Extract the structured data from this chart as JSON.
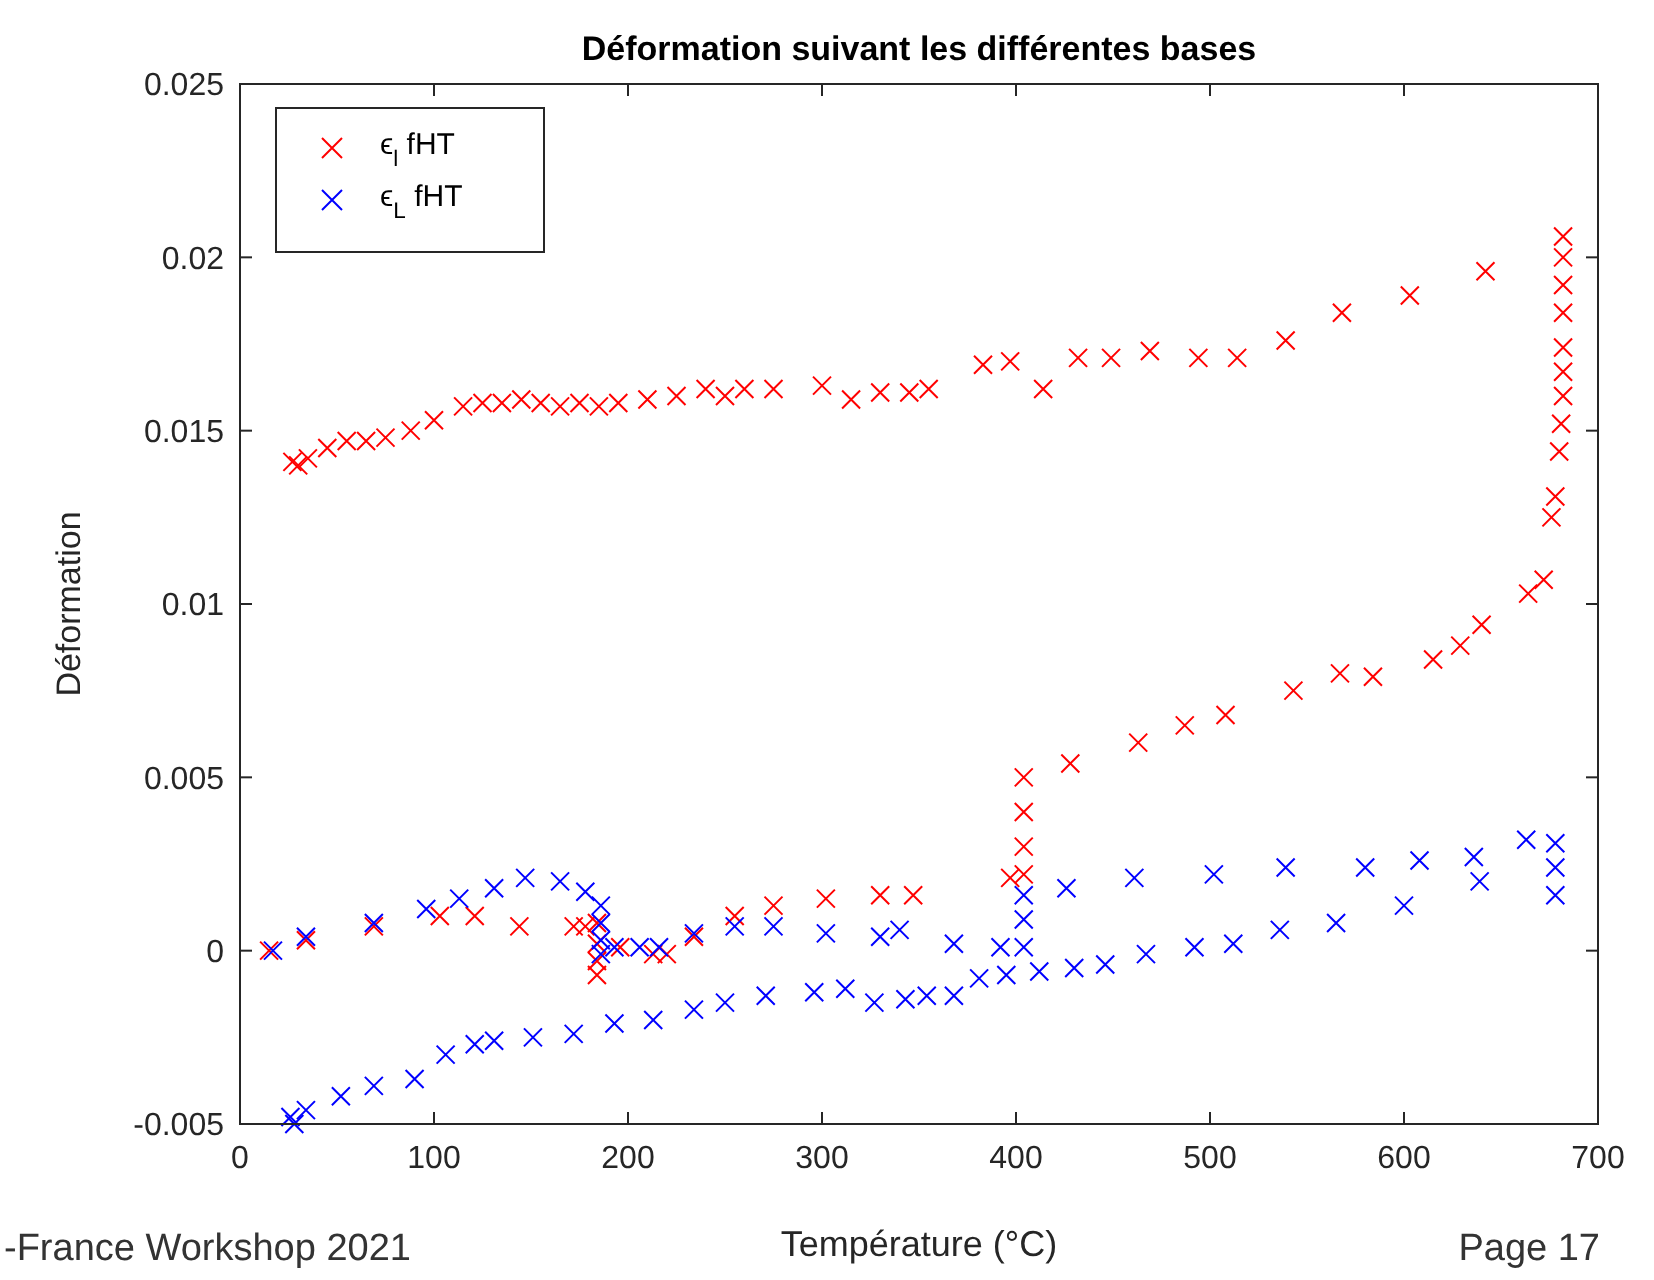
{
  "chart_data": {
    "type": "scatter",
    "title": "Déformation suivant les différentes bases",
    "xlabel": "Température (°C)",
    "ylabel": "Déformation",
    "xlim": [
      0,
      700
    ],
    "xticks": [
      0,
      100,
      200,
      300,
      400,
      500,
      600,
      700
    ],
    "ylim": [
      -0.005,
      0.025
    ],
    "yticks": [
      -0.005,
      0,
      0.005,
      0.01,
      0.015,
      0.02,
      0.025
    ],
    "grid": false,
    "legend": "top left",
    "marker": "cross",
    "annotations": [
      "-France Workshop 2021",
      "Page 17"
    ],
    "series": [
      {
        "name": "ϵ$_{l}$ fHT",
        "color": "#ff0000",
        "x": [
          15,
          34,
          69,
          103,
          121,
          144,
          172,
          178,
          184,
          184,
          184,
          184,
          196,
          213,
          220,
          234,
          255,
          275,
          302,
          330,
          347,
          397,
          404,
          404,
          404,
          404,
          428,
          463,
          487,
          508,
          543,
          567,
          584,
          615,
          629,
          640,
          664,
          672,
          676,
          678,
          680,
          681,
          682,
          682,
          682,
          682,
          682,
          682,
          682,
          27,
          30,
          35,
          45,
          55,
          65,
          75,
          88,
          100,
          115,
          125,
          135,
          145,
          155,
          165,
          175,
          185,
          195,
          210,
          225,
          240,
          250,
          260,
          275,
          300,
          315,
          330,
          345,
          355,
          383,
          397,
          414,
          432,
          449,
          469,
          494,
          514,
          539,
          568,
          603,
          642
        ],
        "values": [
          0,
          0.0003,
          0.0007,
          0.001,
          0.001,
          0.0007,
          0.0007,
          0.0007,
          0.0008,
          0.0002,
          -0.0003,
          -0.0007,
          0.0001,
          -0.0001,
          -0.0001,
          0.0004,
          0.001,
          0.0013,
          0.0015,
          0.0016,
          0.0016,
          0.0021,
          0.0022,
          0.003,
          0.004,
          0.005,
          0.0054,
          0.006,
          0.0065,
          0.0068,
          0.0075,
          0.008,
          0.0079,
          0.0084,
          0.0088,
          0.0094,
          0.0103,
          0.0107,
          0.0125,
          0.0131,
          0.0144,
          0.0152,
          0.016,
          0.0167,
          0.0174,
          0.0184,
          0.0192,
          0.02,
          0.0206,
          0.0141,
          0.014,
          0.0142,
          0.0145,
          0.0147,
          0.0147,
          0.0148,
          0.015,
          0.0153,
          0.0157,
          0.0158,
          0.0158,
          0.0159,
          0.0158,
          0.0157,
          0.0158,
          0.0157,
          0.0158,
          0.0159,
          0.016,
          0.0162,
          0.016,
          0.0162,
          0.0162,
          0.0163,
          0.0159,
          0.0161,
          0.0161,
          0.0162,
          0.0169,
          0.017,
          0.0162,
          0.0171,
          0.0171,
          0.0173,
          0.0171,
          0.0171,
          0.0176,
          0.0184,
          0.0189,
          0.0196
        ]
      },
      {
        "name": "ϵ$_{L}$ fHT",
        "color": "#0000ff",
        "x": [
          17,
          34,
          69,
          96,
          113,
          131,
          147,
          165,
          178,
          186,
          186,
          186,
          186,
          193,
          206,
          216,
          234,
          255,
          275,
          302,
          330,
          340,
          368,
          392,
          404,
          404,
          404,
          426,
          461,
          502,
          539,
          580,
          608,
          636,
          663,
          678,
          678,
          678,
          639,
          600,
          565,
          536,
          512,
          492,
          467,
          446,
          430,
          412,
          395,
          381,
          368,
          354,
          343,
          327,
          312,
          296,
          271,
          250,
          234,
          213,
          193,
          172,
          151,
          131,
          121,
          106,
          90,
          69,
          52,
          34,
          26,
          28
        ],
        "values": [
          0,
          0.0004,
          0.0008,
          0.0012,
          0.0015,
          0.0018,
          0.0021,
          0.002,
          0.0017,
          0.0013,
          0.0008,
          0.0003,
          -0.0001,
          0.0001,
          0.0001,
          0.0001,
          0.0005,
          0.0007,
          0.0007,
          0.0005,
          0.0004,
          0.0006,
          0.0002,
          0.0001,
          0.0001,
          0.0009,
          0.0016,
          0.0018,
          0.0021,
          0.0022,
          0.0024,
          0.0024,
          0.0026,
          0.0027,
          0.0032,
          0.0031,
          0.0024,
          0.0016,
          0.002,
          0.0013,
          0.0008,
          0.0006,
          0.0002,
          0.0001,
          -0.0001,
          -0.0004,
          -0.0005,
          -0.0006,
          -0.0007,
          -0.0008,
          -0.0013,
          -0.0013,
          -0.0014,
          -0.0015,
          -0.0011,
          -0.0012,
          -0.0013,
          -0.0015,
          -0.0017,
          -0.002,
          -0.0021,
          -0.0024,
          -0.0025,
          -0.0026,
          -0.0027,
          -0.003,
          -0.0037,
          -0.0039,
          -0.0042,
          -0.0046,
          -0.0048,
          -0.005
        ]
      }
    ]
  }
}
